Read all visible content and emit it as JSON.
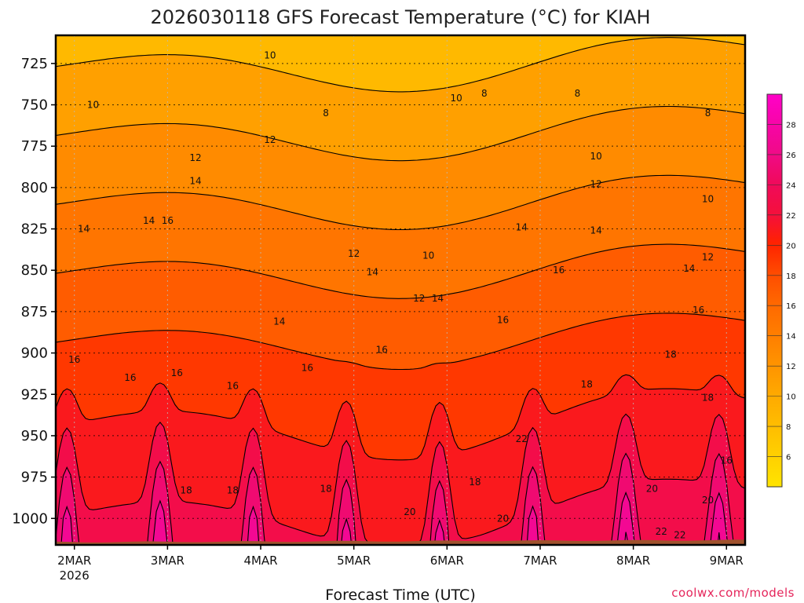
{
  "chart_data": {
    "type": "heatmap",
    "title": "2026030118 GFS Forecast Temperature (°C) for KIAH",
    "xlabel": "Forecast Time (UTC)",
    "ylabel": "",
    "credit": "coolwx.com/models",
    "x_ticks": [
      "2MAR",
      "3MAR",
      "4MAR",
      "5MAR",
      "6MAR",
      "7MAR",
      "8MAR",
      "9MAR"
    ],
    "x_tick_sublabel": "2026",
    "x_range_days": [
      -0.2,
      7.2
    ],
    "y_ticks": [
      "725",
      "750",
      "775",
      "800",
      "825",
      "850",
      "875",
      "900",
      "925",
      "950",
      "975",
      "1000"
    ],
    "y_range_hpa": [
      1016,
      708
    ],
    "colorbar_ticks": [
      "6",
      "8",
      "10",
      "12",
      "14",
      "16",
      "18",
      "20",
      "22",
      "24",
      "26",
      "28"
    ],
    "colorbar_range": [
      4,
      30
    ],
    "contour_interval": 2,
    "contour_labels": [
      {
        "text": "10",
        "day": 2.1,
        "p": 720
      },
      {
        "text": "8",
        "day": 2.7,
        "p": 755
      },
      {
        "text": "8",
        "day": 4.4,
        "p": 743
      },
      {
        "text": "8",
        "day": 5.4,
        "p": 743
      },
      {
        "text": "8",
        "day": 6.8,
        "p": 755
      },
      {
        "text": "10",
        "day": 0.2,
        "p": 750
      },
      {
        "text": "10",
        "day": 4.1,
        "p": 746
      },
      {
        "text": "10",
        "day": 5.6,
        "p": 781
      },
      {
        "text": "10",
        "day": 6.8,
        "p": 807
      },
      {
        "text": "10",
        "day": 3.8,
        "p": 841
      },
      {
        "text": "12",
        "day": 1.3,
        "p": 782
      },
      {
        "text": "12",
        "day": 2.1,
        "p": 771
      },
      {
        "text": "12",
        "day": 3.0,
        "p": 840
      },
      {
        "text": "12",
        "day": 3.7,
        "p": 867
      },
      {
        "text": "12",
        "day": 5.6,
        "p": 798
      },
      {
        "text": "12",
        "day": 6.8,
        "p": 842
      },
      {
        "text": "14",
        "day": 0.1,
        "p": 825
      },
      {
        "text": "14",
        "day": 0.8,
        "p": 820
      },
      {
        "text": "14",
        "day": 1.3,
        "p": 796
      },
      {
        "text": "14",
        "day": 2.2,
        "p": 881
      },
      {
        "text": "14",
        "day": 3.2,
        "p": 851
      },
      {
        "text": "14",
        "day": 3.9,
        "p": 867
      },
      {
        "text": "14",
        "day": 4.8,
        "p": 824
      },
      {
        "text": "14",
        "day": 5.6,
        "p": 826
      },
      {
        "text": "14",
        "day": 6.6,
        "p": 849
      },
      {
        "text": "16",
        "day": 0.0,
        "p": 904
      },
      {
        "text": "16",
        "day": 0.6,
        "p": 915
      },
      {
        "text": "16",
        "day": 1.0,
        "p": 820
      },
      {
        "text": "16",
        "day": 1.1,
        "p": 912
      },
      {
        "text": "16",
        "day": 1.7,
        "p": 920
      },
      {
        "text": "16",
        "day": 2.5,
        "p": 909
      },
      {
        "text": "16",
        "day": 3.3,
        "p": 898
      },
      {
        "text": "16",
        "day": 4.6,
        "p": 880
      },
      {
        "text": "16",
        "day": 5.2,
        "p": 850
      },
      {
        "text": "16",
        "day": 6.7,
        "p": 874
      },
      {
        "text": "16",
        "day": 7.0,
        "p": 965
      },
      {
        "text": "18",
        "day": 1.2,
        "p": 983
      },
      {
        "text": "18",
        "day": 1.7,
        "p": 983
      },
      {
        "text": "18",
        "day": 2.7,
        "p": 982
      },
      {
        "text": "18",
        "day": 4.3,
        "p": 978
      },
      {
        "text": "18",
        "day": 5.5,
        "p": 919
      },
      {
        "text": "18",
        "day": 6.4,
        "p": 901
      },
      {
        "text": "18",
        "day": 6.8,
        "p": 927
      },
      {
        "text": "20",
        "day": 3.6,
        "p": 996
      },
      {
        "text": "20",
        "day": 4.6,
        "p": 1000
      },
      {
        "text": "20",
        "day": 6.2,
        "p": 982
      },
      {
        "text": "20",
        "day": 6.8,
        "p": 989
      },
      {
        "text": "22",
        "day": 4.8,
        "p": 952
      },
      {
        "text": "22",
        "day": 6.3,
        "p": 1008
      },
      {
        "text": "22",
        "day": 6.5,
        "p": 1010
      }
    ]
  }
}
